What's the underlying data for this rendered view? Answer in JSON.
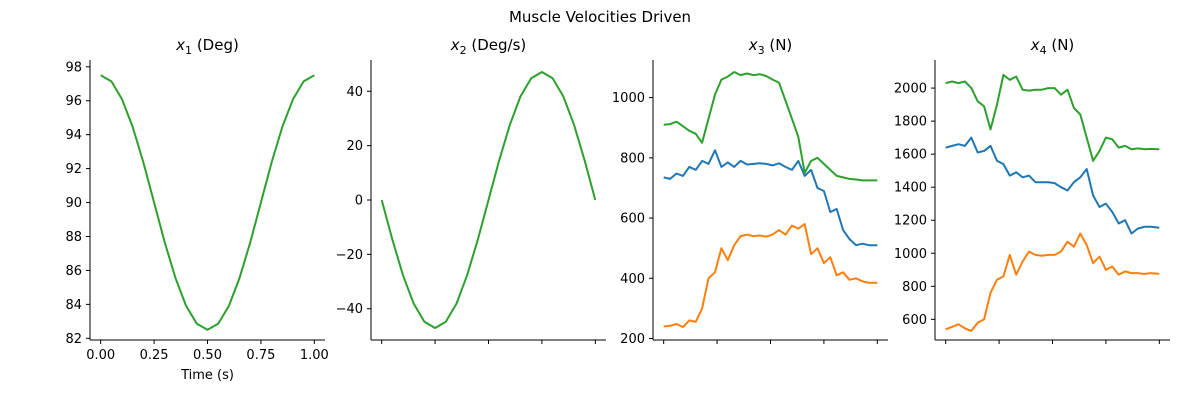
{
  "figure": {
    "suptitle": "Muscle Velocities Driven"
  },
  "colors": {
    "blue": "#1f77b4",
    "orange": "#ff7f0e",
    "green": "#2ca02c"
  },
  "chart_data": [
    {
      "type": "line",
      "title_var": "x",
      "title_sub": "1",
      "title_unit": " (Deg)",
      "xlabel": "Time (s)",
      "xlim": [
        -0.05,
        1.05
      ],
      "ylim": [
        81.9,
        98.4
      ],
      "xticks": [
        0,
        0.25,
        0.5,
        0.75,
        1.0
      ],
      "xtick_labels": [
        "0.00",
        "0.25",
        "0.50",
        "0.75",
        "1.00"
      ],
      "yticks": [
        82,
        84,
        86,
        88,
        90,
        92,
        94,
        96,
        98
      ],
      "ytick_labels": [
        "82",
        "84",
        "86",
        "88",
        "90",
        "92",
        "94",
        "96",
        "98"
      ],
      "series": [
        {
          "color": "green",
          "x": [
            0,
            0.05,
            0.1,
            0.15,
            0.2,
            0.25,
            0.3,
            0.35,
            0.4,
            0.45,
            0.5,
            0.55,
            0.6,
            0.65,
            0.7,
            0.75,
            0.8,
            0.85,
            0.9,
            0.95,
            1.0
          ],
          "y": [
            97.5,
            97.14,
            96.09,
            94.45,
            92.36,
            90.0,
            87.64,
            85.55,
            83.91,
            82.86,
            82.5,
            82.86,
            83.91,
            85.55,
            87.64,
            90.0,
            92.36,
            94.45,
            96.09,
            97.14,
            97.5
          ]
        }
      ]
    },
    {
      "type": "line",
      "title_var": "x",
      "title_sub": "2",
      "title_unit": " (Deg/s)",
      "xlabel": "",
      "xlim": [
        -0.05,
        1.05
      ],
      "ylim": [
        -51.5,
        51.5
      ],
      "xticks": [
        0,
        0.25,
        0.5,
        0.75,
        1.0
      ],
      "xtick_labels": [
        "",
        "",
        "",
        "",
        ""
      ],
      "yticks": [
        -40,
        -20,
        0,
        20,
        40
      ],
      "ytick_labels": [
        "−40",
        "−20",
        "0",
        "20",
        "40"
      ],
      "series": [
        {
          "color": "green",
          "x": [
            0,
            0.05,
            0.1,
            0.15,
            0.2,
            0.25,
            0.3,
            0.35,
            0.4,
            0.45,
            0.5,
            0.55,
            0.6,
            0.65,
            0.7,
            0.75,
            0.8,
            0.85,
            0.9,
            0.95,
            1.0
          ],
          "y": [
            0,
            -14.6,
            -27.7,
            -38.1,
            -44.8,
            -47.1,
            -44.8,
            -38.1,
            -27.7,
            -14.6,
            0,
            14.6,
            27.7,
            38.1,
            44.8,
            47.1,
            44.8,
            38.1,
            27.7,
            14.6,
            0
          ]
        }
      ]
    },
    {
      "type": "line",
      "title_var": "x",
      "title_sub": "3",
      "title_unit": " (N)",
      "xlabel": "",
      "xlim": [
        -0.05,
        1.05
      ],
      "ylim": [
        195,
        1125
      ],
      "xticks": [
        0,
        0.25,
        0.5,
        0.75,
        1.0
      ],
      "xtick_labels": [
        "",
        "",
        "",
        "",
        ""
      ],
      "yticks": [
        200,
        400,
        600,
        800,
        1000
      ],
      "ytick_labels": [
        "200",
        "400",
        "600",
        "800",
        "1000"
      ],
      "series": [
        {
          "color": "blue",
          "x": [
            0,
            0.03,
            0.06,
            0.09,
            0.12,
            0.15,
            0.18,
            0.21,
            0.24,
            0.27,
            0.3,
            0.33,
            0.36,
            0.39,
            0.42,
            0.45,
            0.48,
            0.51,
            0.54,
            0.57,
            0.6,
            0.63,
            0.66,
            0.69,
            0.72,
            0.75,
            0.78,
            0.81,
            0.84,
            0.87,
            0.9,
            0.93,
            0.96,
            1.0
          ],
          "y": [
            735,
            730,
            748,
            740,
            770,
            760,
            790,
            780,
            825,
            770,
            785,
            770,
            790,
            778,
            780,
            782,
            780,
            775,
            782,
            770,
            760,
            790,
            740,
            760,
            700,
            690,
            620,
            630,
            560,
            530,
            510,
            515,
            510,
            510
          ]
        },
        {
          "color": "orange",
          "x": [
            0,
            0.03,
            0.06,
            0.09,
            0.12,
            0.15,
            0.18,
            0.21,
            0.24,
            0.27,
            0.3,
            0.33,
            0.36,
            0.39,
            0.42,
            0.45,
            0.48,
            0.51,
            0.54,
            0.57,
            0.6,
            0.63,
            0.66,
            0.69,
            0.72,
            0.75,
            0.78,
            0.81,
            0.84,
            0.87,
            0.9,
            0.93,
            0.96,
            1.0
          ],
          "y": [
            240,
            242,
            248,
            238,
            260,
            255,
            300,
            400,
            420,
            500,
            460,
            510,
            540,
            545,
            540,
            542,
            538,
            545,
            560,
            545,
            575,
            565,
            580,
            480,
            500,
            450,
            470,
            410,
            420,
            395,
            400,
            390,
            385,
            385
          ]
        },
        {
          "color": "green",
          "x": [
            0,
            0.03,
            0.06,
            0.09,
            0.12,
            0.15,
            0.18,
            0.21,
            0.24,
            0.27,
            0.3,
            0.33,
            0.36,
            0.39,
            0.42,
            0.45,
            0.48,
            0.51,
            0.54,
            0.57,
            0.6,
            0.63,
            0.66,
            0.69,
            0.72,
            0.75,
            0.78,
            0.81,
            0.84,
            0.87,
            0.9,
            0.93,
            0.96,
            1.0
          ],
          "y": [
            910,
            912,
            920,
            905,
            890,
            880,
            850,
            930,
            1010,
            1060,
            1070,
            1085,
            1075,
            1080,
            1075,
            1078,
            1072,
            1060,
            1050,
            990,
            930,
            870,
            750,
            790,
            800,
            780,
            760,
            740,
            735,
            730,
            728,
            725,
            725,
            725
          ]
        }
      ]
    },
    {
      "type": "line",
      "title_var": "x",
      "title_sub": "4",
      "title_unit": " (N)",
      "xlabel": "",
      "xlim": [
        -0.05,
        1.05
      ],
      "ylim": [
        475,
        2170
      ],
      "xticks": [
        0,
        0.25,
        0.5,
        0.75,
        1.0
      ],
      "xtick_labels": [
        "",
        "",
        "",
        "",
        ""
      ],
      "yticks": [
        600,
        800,
        1000,
        1200,
        1400,
        1600,
        1800,
        2000
      ],
      "ytick_labels": [
        "600",
        "800",
        "1000",
        "1200",
        "1400",
        "1600",
        "1800",
        "2000"
      ],
      "series": [
        {
          "color": "blue",
          "x": [
            0,
            0.03,
            0.06,
            0.09,
            0.12,
            0.15,
            0.18,
            0.21,
            0.24,
            0.27,
            0.3,
            0.33,
            0.36,
            0.39,
            0.42,
            0.45,
            0.48,
            0.51,
            0.54,
            0.57,
            0.6,
            0.63,
            0.66,
            0.69,
            0.72,
            0.75,
            0.78,
            0.81,
            0.84,
            0.87,
            0.9,
            0.93,
            0.96,
            1.0
          ],
          "y": [
            1640,
            1650,
            1660,
            1650,
            1700,
            1610,
            1620,
            1650,
            1560,
            1540,
            1470,
            1490,
            1460,
            1470,
            1430,
            1430,
            1430,
            1425,
            1400,
            1380,
            1430,
            1460,
            1510,
            1350,
            1280,
            1300,
            1250,
            1180,
            1200,
            1120,
            1150,
            1160,
            1160,
            1155
          ]
        },
        {
          "color": "orange",
          "x": [
            0,
            0.03,
            0.06,
            0.09,
            0.12,
            0.15,
            0.18,
            0.21,
            0.24,
            0.27,
            0.3,
            0.33,
            0.36,
            0.39,
            0.42,
            0.45,
            0.48,
            0.51,
            0.54,
            0.57,
            0.6,
            0.63,
            0.66,
            0.69,
            0.72,
            0.75,
            0.78,
            0.81,
            0.84,
            0.87,
            0.9,
            0.93,
            0.96,
            1.0
          ],
          "y": [
            540,
            555,
            570,
            545,
            530,
            580,
            600,
            760,
            840,
            860,
            990,
            870,
            950,
            1010,
            990,
            985,
            990,
            990,
            1010,
            1070,
            1040,
            1120,
            1050,
            940,
            980,
            900,
            920,
            870,
            890,
            880,
            880,
            875,
            880,
            875
          ]
        },
        {
          "color": "green",
          "x": [
            0,
            0.03,
            0.06,
            0.09,
            0.12,
            0.15,
            0.18,
            0.21,
            0.24,
            0.27,
            0.3,
            0.33,
            0.36,
            0.39,
            0.42,
            0.45,
            0.48,
            0.51,
            0.54,
            0.57,
            0.6,
            0.63,
            0.66,
            0.69,
            0.72,
            0.75,
            0.78,
            0.81,
            0.84,
            0.87,
            0.9,
            0.93,
            0.96,
            1.0
          ],
          "y": [
            2030,
            2040,
            2030,
            2040,
            2000,
            1920,
            1890,
            1750,
            1900,
            2080,
            2050,
            2070,
            1990,
            1985,
            1990,
            1990,
            2000,
            2000,
            1960,
            1990,
            1880,
            1840,
            1700,
            1560,
            1620,
            1700,
            1690,
            1640,
            1650,
            1630,
            1635,
            1630,
            1632,
            1630
          ]
        }
      ]
    }
  ]
}
